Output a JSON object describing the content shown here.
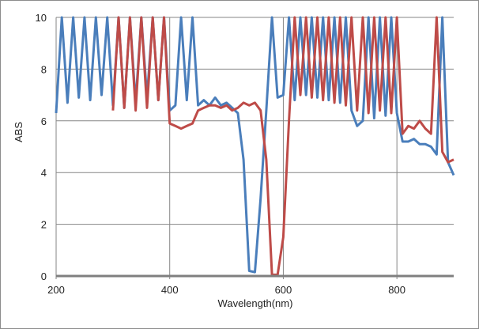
{
  "chart_data": {
    "type": "line",
    "xlabel": "Wavelength(nm)",
    "ylabel": "ABS",
    "xlim": [
      200,
      900
    ],
    "ylim": [
      0,
      10
    ],
    "xticks": [
      200,
      400,
      600,
      800
    ],
    "yticks": [
      0,
      2,
      4,
      6,
      8,
      10
    ],
    "grid": true,
    "legend": "none",
    "series": [
      {
        "color": "#4a7ebb",
        "x": [
          200,
          210,
          220,
          230,
          240,
          250,
          260,
          270,
          280,
          290,
          300,
          310,
          320,
          330,
          340,
          350,
          360,
          370,
          380,
          390,
          400,
          410,
          420,
          430,
          440,
          450,
          460,
          470,
          480,
          490,
          500,
          510,
          520,
          530,
          540,
          550,
          560,
          570,
          580,
          590,
          600,
          610,
          620,
          630,
          640,
          650,
          660,
          670,
          680,
          690,
          700,
          710,
          720,
          730,
          740,
          750,
          760,
          770,
          780,
          790,
          800,
          810,
          820,
          830,
          840,
          850,
          860,
          870,
          880,
          890,
          900
        ],
        "y": [
          6.3,
          10,
          6.7,
          10,
          6.9,
          10,
          6.8,
          10,
          7.0,
          10,
          6.6,
          10,
          6.5,
          10,
          6.7,
          10,
          6.9,
          10,
          6.8,
          10,
          6.4,
          6.6,
          10,
          6.8,
          10,
          6.6,
          6.8,
          6.6,
          6.9,
          6.6,
          6.7,
          6.5,
          6.3,
          4.5,
          0.2,
          0.15,
          3.0,
          6.4,
          10,
          6.9,
          7.0,
          10,
          6.8,
          10,
          7.0,
          10,
          6.9,
          10,
          6.8,
          10,
          6.7,
          10,
          6.4,
          5.8,
          6.0,
          10,
          6.1,
          10,
          6.2,
          10,
          6.3,
          5.2,
          5.2,
          5.3,
          5.1,
          5.1,
          5.0,
          4.7,
          10,
          4.4,
          3.9
        ]
      },
      {
        "color": "#be4b48",
        "x": [
          300,
          310,
          320,
          330,
          340,
          350,
          360,
          370,
          380,
          390,
          400,
          410,
          420,
          430,
          440,
          450,
          460,
          470,
          480,
          490,
          500,
          510,
          520,
          530,
          540,
          550,
          560,
          570,
          580,
          590,
          600,
          610,
          620,
          630,
          640,
          650,
          660,
          670,
          680,
          690,
          700,
          710,
          720,
          730,
          740,
          750,
          760,
          770,
          780,
          790,
          800,
          810,
          820,
          830,
          840,
          850,
          860,
          870,
          880,
          890,
          900
        ],
        "y": [
          6.4,
          10,
          6.5,
          10,
          6.4,
          10,
          6.5,
          10,
          6.8,
          10,
          5.9,
          5.8,
          5.7,
          5.8,
          5.9,
          6.4,
          6.5,
          6.6,
          6.6,
          6.5,
          6.6,
          6.4,
          6.5,
          6.7,
          6.6,
          6.7,
          6.4,
          4.5,
          0.05,
          0.05,
          1.5,
          6.0,
          10,
          7.0,
          10,
          6.9,
          10,
          6.8,
          10,
          6.7,
          10,
          6.6,
          10,
          6.4,
          10,
          6.3,
          10,
          6.4,
          10,
          6.3,
          10,
          5.5,
          5.8,
          5.7,
          6.0,
          5.7,
          5.5,
          10,
          4.8,
          4.4,
          4.5
        ]
      }
    ]
  }
}
